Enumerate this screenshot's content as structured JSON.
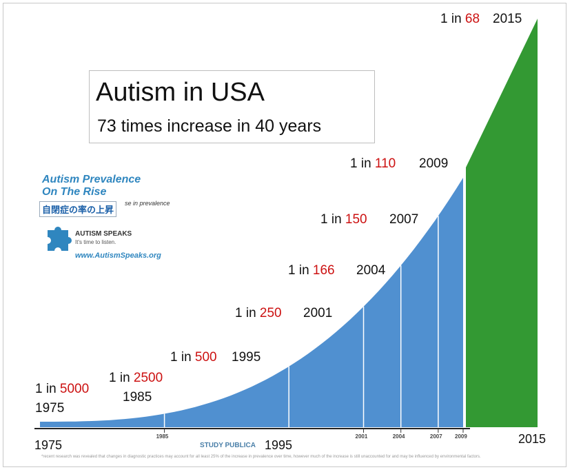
{
  "chart_data": {
    "type": "area",
    "title": "Autism in USA",
    "subtitle": "73 times increase in 40 years",
    "x": [
      1975,
      1985,
      1995,
      2001,
      2004,
      2007,
      2009,
      2015
    ],
    "ratio_prefix": "1 in",
    "values": [
      5000,
      2500,
      500,
      250,
      166,
      150,
      110,
      68
    ],
    "value_labels": [
      "5000",
      "2500",
      "500",
      "250",
      "166",
      "150",
      "110",
      "68"
    ],
    "year_labels": [
      "1975",
      "1985",
      "1995",
      "2001",
      "2004",
      "2007",
      "2009",
      "2015"
    ],
    "small_axis_ticks": [
      "1985",
      "2001",
      "2004",
      "2007",
      "2009"
    ],
    "axis_caption": "STUDY PUBLICA",
    "big_axis_labels": [
      "1975",
      "1995",
      "2015"
    ],
    "series": [
      {
        "name": "",
        "color": "#5090d0",
        "range": "1975-2009"
      },
      {
        "name": "",
        "color": "#339933",
        "range": "2009-2015"
      }
    ],
    "label_color": "#cc1111",
    "grid": false,
    "legend": "none"
  },
  "logo": {
    "line1": "Autism Prevalence",
    "line2": "On The Rise",
    "japanese": "自閉症の率の上昇",
    "subline": "se in prevalence",
    "brand": "AUTISM SPEAKS",
    "tagline": "It's time to listen.",
    "url": "www.AutismSpeaks.org",
    "logo_color": "#2f86bf"
  },
  "footnote": "*recent research was revealed that changes in diagnostic practices may account for all least 25% of the increase in prevalence over time, however much of the increase is still unaccounted for and may be influenced by environmental factors."
}
